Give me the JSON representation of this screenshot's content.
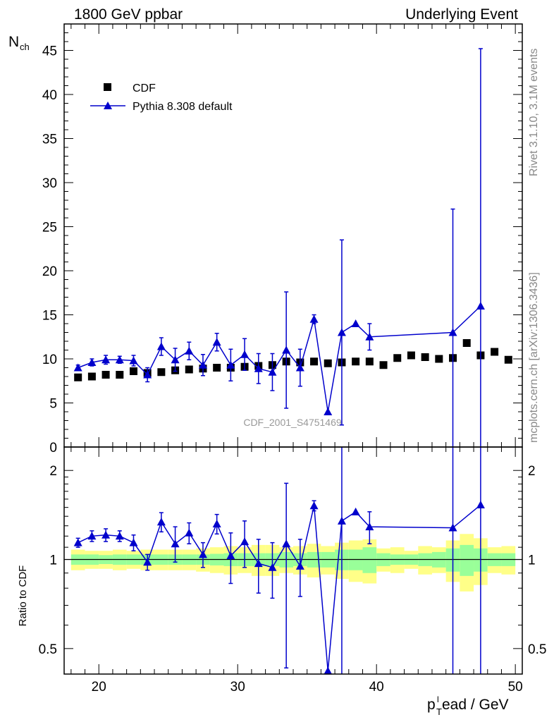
{
  "header": {
    "left": "1800 GeV ppbar",
    "right": "Underlying Event"
  },
  "side_texts": {
    "rivet": "Rivet 3.1.10,  3.1M events",
    "mcplots": "mcplots.cern.ch [arXiv:1306.3436]"
  },
  "watermark": "CDF_2001_S4751469",
  "colors": {
    "data": "#000000",
    "mc": "#0000cc",
    "band_inner": "#99ff99",
    "band_outer": "#ffff88"
  },
  "chart_data": [
    {
      "type": "scatter",
      "panel": "main",
      "ylabel": "N",
      "ylabel_sub": "ch",
      "ylim": [
        0,
        48
      ],
      "xlim": [
        17.5,
        50.5
      ],
      "yticks": [
        0,
        5,
        10,
        15,
        20,
        25,
        30,
        35,
        40,
        45
      ],
      "legend_position": "top-left",
      "series": [
        {
          "name": "CDF",
          "marker": "square",
          "x": [
            18.5,
            19.5,
            20.5,
            21.5,
            22.5,
            23.5,
            24.5,
            25.5,
            26.5,
            27.5,
            28.5,
            29.5,
            30.5,
            31.5,
            32.5,
            33.5,
            34.5,
            35.5,
            36.5,
            37.5,
            38.5,
            39.5,
            40.5,
            41.5,
            42.5,
            43.5,
            44.5,
            45.5,
            46.5,
            47.5,
            48.5,
            49.5
          ],
          "y": [
            7.9,
            8.0,
            8.2,
            8.2,
            8.6,
            8.4,
            8.5,
            8.7,
            8.8,
            8.9,
            9.0,
            9.0,
            9.1,
            9.2,
            9.3,
            9.7,
            9.6,
            9.7,
            9.5,
            9.6,
            9.7,
            9.7,
            9.3,
            10.1,
            10.4,
            10.2,
            10.0,
            10.1,
            11.8,
            10.4,
            10.8,
            9.9
          ]
        },
        {
          "name": "Pythia 8.308 default",
          "marker": "triangle",
          "x": [
            18.5,
            19.5,
            20.5,
            21.5,
            22.5,
            23.5,
            24.5,
            25.5,
            26.5,
            27.5,
            28.5,
            29.5,
            30.5,
            31.5,
            32.5,
            33.5,
            34.5,
            35.5,
            36.5,
            37.5,
            38.5,
            39.5,
            45.5,
            47.5
          ],
          "y": [
            9.0,
            9.6,
            9.9,
            9.9,
            9.8,
            8.2,
            11.4,
            9.9,
            10.9,
            9.3,
            11.9,
            9.3,
            10.5,
            8.9,
            8.5,
            11.0,
            9.0,
            14.5,
            4.0,
            13.0,
            14.0,
            12.5,
            13.0,
            16.0
          ],
          "yerr": [
            0.3,
            0.4,
            0.5,
            0.4,
            0.6,
            0.8,
            1.0,
            1.3,
            1.0,
            1.2,
            1.0,
            1.8,
            1.8,
            1.7,
            2.1,
            6.6,
            2.1,
            0.5,
            0,
            10.5,
            0,
            1.5,
            14.0,
            29.2
          ]
        }
      ]
    },
    {
      "type": "scatter",
      "panel": "ratio",
      "ylabel": "Ratio to CDF",
      "xlabel": "p_T^lead / GeV",
      "xlabel_main": "p",
      "xlabel_sub": "T",
      "xlabel_sup": "l",
      "xlabel_rest": "ead / GeV",
      "ylim": [
        0.41,
        2.4
      ],
      "log_y": true,
      "xlim": [
        17.5,
        50.5
      ],
      "xticks": [
        20,
        30,
        40,
        50
      ],
      "yticks": [
        0.5,
        1,
        2
      ],
      "reference_band": {
        "x": [
          18.5,
          19.5,
          20.5,
          21.5,
          22.5,
          23.5,
          24.5,
          25.5,
          26.5,
          27.5,
          28.5,
          29.5,
          30.5,
          31.5,
          32.5,
          33.5,
          34.5,
          35.5,
          36.5,
          37.5,
          38.5,
          39.5,
          40.5,
          41.5,
          42.5,
          43.5,
          44.5,
          45.5,
          46.5,
          47.5,
          48.5,
          49.5
        ],
        "inner": [
          0.04,
          0.04,
          0.035,
          0.04,
          0.04,
          0.04,
          0.04,
          0.04,
          0.04,
          0.04,
          0.045,
          0.05,
          0.05,
          0.05,
          0.05,
          0.06,
          0.05,
          0.06,
          0.06,
          0.08,
          0.08,
          0.1,
          0.05,
          0.04,
          0.04,
          0.05,
          0.06,
          0.09,
          0.12,
          0.09,
          0.05,
          0.05
        ],
        "outer": [
          0.08,
          0.07,
          0.07,
          0.08,
          0.07,
          0.08,
          0.08,
          0.08,
          0.08,
          0.09,
          0.1,
          0.11,
          0.1,
          0.12,
          0.12,
          0.1,
          0.11,
          0.13,
          0.11,
          0.14,
          0.16,
          0.17,
          0.09,
          0.1,
          0.07,
          0.11,
          0.1,
          0.16,
          0.22,
          0.18,
          0.1,
          0.11
        ]
      },
      "series": [
        {
          "name": "Pythia 8.308 default",
          "x": [
            18.5,
            19.5,
            20.5,
            21.5,
            22.5,
            23.5,
            24.5,
            25.5,
            26.5,
            27.5,
            28.5,
            29.5,
            30.5,
            31.5,
            32.5,
            33.5,
            34.5,
            35.5,
            36.5,
            37.5,
            38.5,
            39.5,
            45.5,
            47.5
          ],
          "y": [
            1.14,
            1.2,
            1.21,
            1.2,
            1.14,
            0.98,
            1.34,
            1.13,
            1.23,
            1.04,
            1.32,
            1.03,
            1.15,
            0.97,
            0.94,
            1.13,
            0.95,
            1.52,
            0.42,
            1.35,
            1.45,
            1.29,
            1.28,
            1.53
          ],
          "err_lo": [
            0.04,
            0.05,
            0.06,
            0.05,
            0.07,
            0.06,
            0.1,
            0.15,
            0.1,
            0.1,
            0.1,
            0.2,
            0.21,
            0.2,
            0.2,
            0.7,
            0.2,
            0.06,
            0,
            1.0,
            0,
            0.16,
            0.9,
            1.2
          ],
          "err_hi": [
            0.04,
            0.05,
            0.06,
            0.05,
            0.07,
            0.06,
            0.1,
            0.16,
            0.1,
            0.1,
            0.1,
            0.2,
            0.2,
            0.2,
            0.2,
            0.68,
            0.22,
            0.06,
            0,
            1.2,
            0,
            0.16,
            1.2,
            1.2
          ]
        }
      ]
    }
  ]
}
